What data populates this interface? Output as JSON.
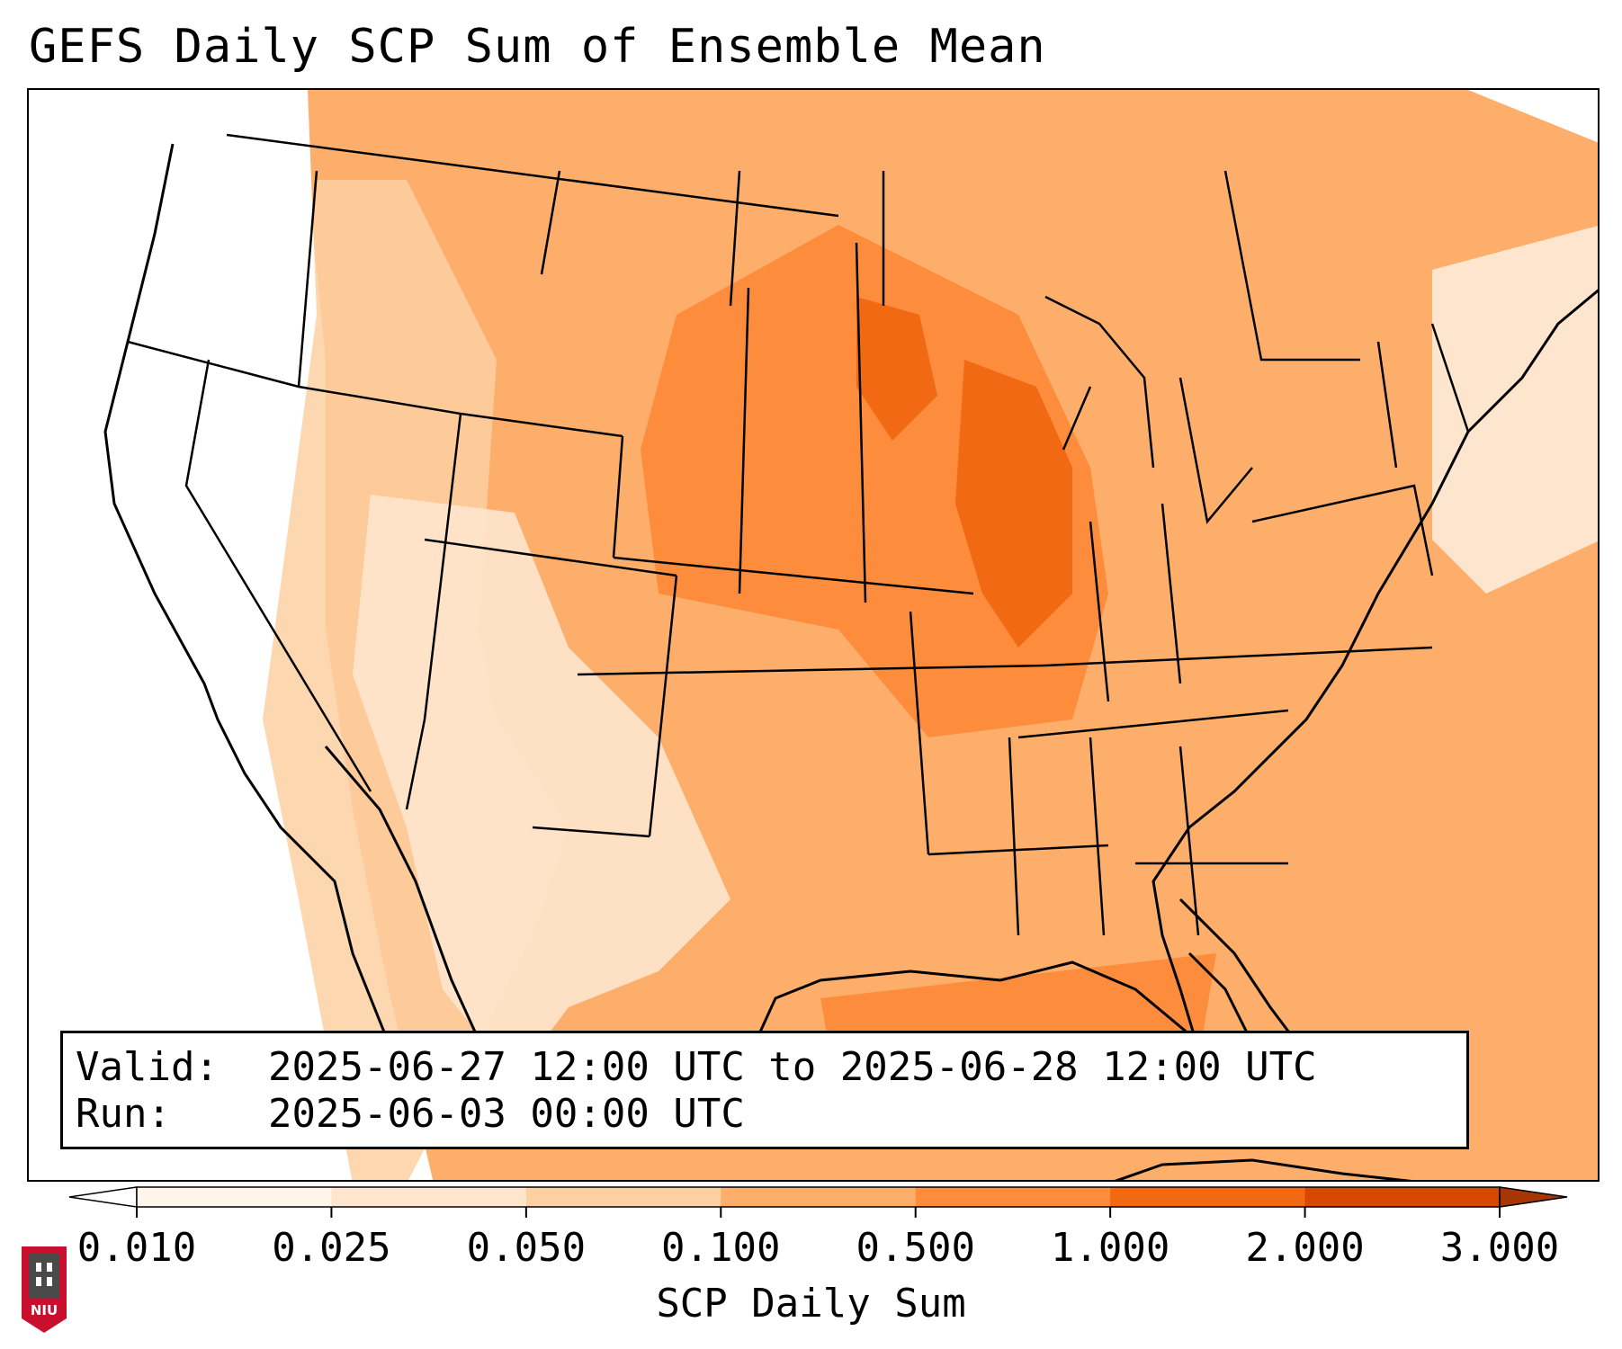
{
  "title": "GEFS Daily SCP Sum of Ensemble Mean",
  "info": {
    "valid_label": "Valid:",
    "valid_value": "2025-06-27 12:00 UTC to 2025-06-28 12:00 UTC",
    "run_label": "Run:",
    "run_value": "2025-06-03 00:00 UTC"
  },
  "colorbar": {
    "title": "SCP Daily Sum",
    "ticks": [
      "0.010",
      "0.025",
      "0.050",
      "0.100",
      "0.500",
      "1.000",
      "2.000",
      "3.000"
    ],
    "colors": [
      "#fff5eb",
      "#fee6ce",
      "#fdd0a2",
      "#fdae6b",
      "#fd8d3c",
      "#f16913",
      "#d94801",
      "#a63603"
    ],
    "under_color": "#ffffff",
    "over_color": "#a63603"
  },
  "map": {
    "region": "CONUS",
    "colors": {
      "none": "#ffffff",
      "very_low": "#fff5eb",
      "low": "#fee6ce",
      "mid_low": "#fdd0a2",
      "mid": "#fdae6b",
      "high": "#fd8d3c",
      "very_high": "#f16913",
      "border": "#000000"
    }
  },
  "logo": {
    "text": "NIU",
    "colors": {
      "shield": "#c8102e",
      "tower": "#4a4a4a"
    }
  }
}
